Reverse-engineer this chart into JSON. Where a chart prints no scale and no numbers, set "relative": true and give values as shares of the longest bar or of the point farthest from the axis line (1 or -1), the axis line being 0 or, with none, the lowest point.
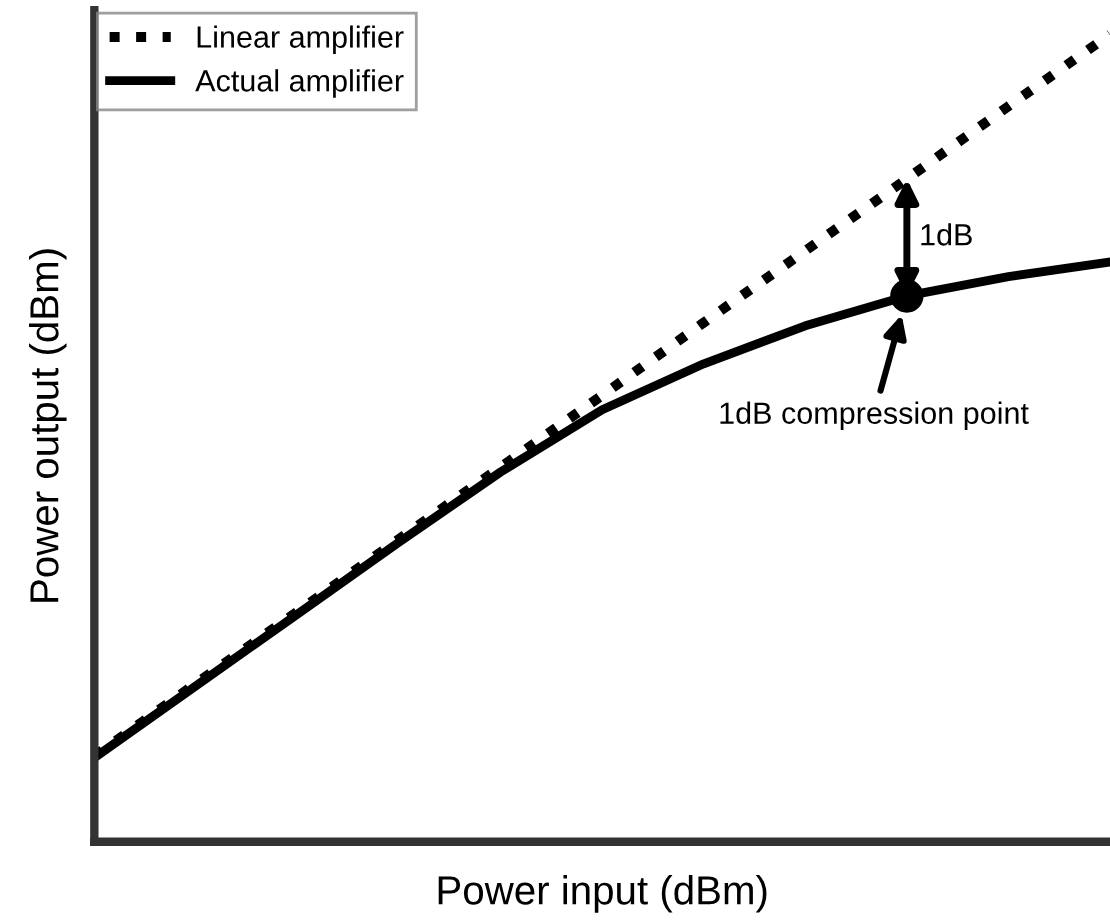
{
  "chart_data": {
    "type": "line",
    "relative": true,
    "xlabel": "Power input (dBm)",
    "ylabel": "Power output (dBm)",
    "categories": [
      null,
      null,
      null,
      null,
      null,
      null,
      null,
      null,
      null,
      null,
      null
    ],
    "series": [
      {
        "name": "Linear amplifier",
        "color": "#000000",
        "line_style": "dotted",
        "values": [
          0.106,
          0.196,
          0.285,
          0.375,
          0.464,
          0.553,
          0.643,
          0.732,
          0.821,
          0.911,
          1.0
        ]
      },
      {
        "name": "Actual amplifier",
        "color": "#000000",
        "line_style": "solid",
        "values": [
          0.104,
          0.193,
          0.282,
          0.371,
          0.458,
          0.535,
          0.592,
          0.639,
          0.676,
          0.7,
          0.718
        ]
      },
      {
        "type": "line",
        "color": "#000000",
        "marker": "circle",
        "values": [
          null,
          null,
          null,
          null,
          null,
          null,
          null,
          null,
          0.676,
          null,
          null
        ]
      }
    ],
    "annotations": [
      "1dB",
      "1dB compression point"
    ],
    "legend": "top left"
  }
}
